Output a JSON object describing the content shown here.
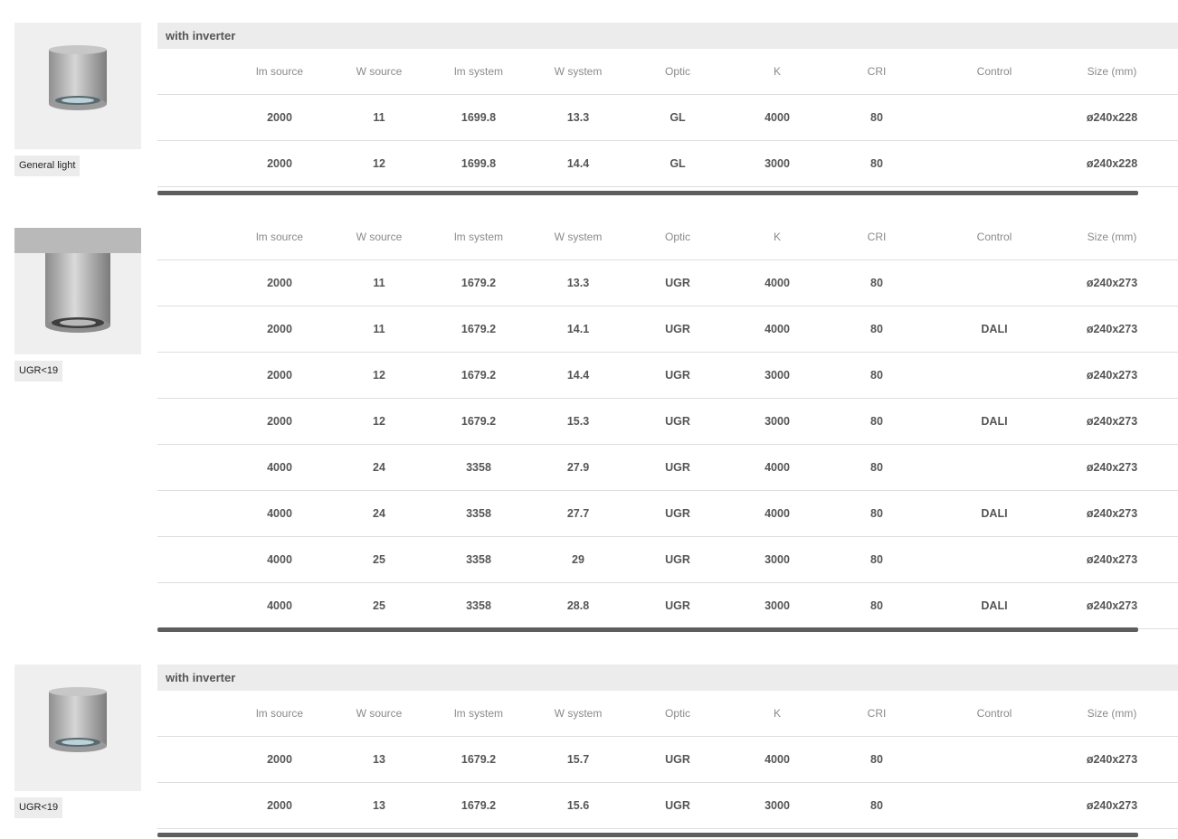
{
  "headers": [
    "lm source",
    "W source",
    "lm system",
    "W system",
    "Optic",
    "K",
    "CRI",
    "Control",
    "Size (mm)"
  ],
  "sections": [
    {
      "tag": "General light",
      "band": "with inverter",
      "rows": [
        [
          "2000",
          "11",
          "1699.8",
          "13.3",
          "GL",
          "4000",
          "80",
          "",
          "ø240x228"
        ],
        [
          "2000",
          "12",
          "1699.8",
          "14.4",
          "GL",
          "3000",
          "80",
          "",
          "ø240x228"
        ]
      ]
    },
    {
      "tag": "UGR<19",
      "band": "",
      "rows": [
        [
          "2000",
          "11",
          "1679.2",
          "13.3",
          "UGR",
          "4000",
          "80",
          "",
          "ø240x273"
        ],
        [
          "2000",
          "11",
          "1679.2",
          "14.1",
          "UGR",
          "4000",
          "80",
          "DALI",
          "ø240x273"
        ],
        [
          "2000",
          "12",
          "1679.2",
          "14.4",
          "UGR",
          "3000",
          "80",
          "",
          "ø240x273"
        ],
        [
          "2000",
          "12",
          "1679.2",
          "15.3",
          "UGR",
          "3000",
          "80",
          "DALI",
          "ø240x273"
        ],
        [
          "4000",
          "24",
          "3358",
          "27.9",
          "UGR",
          "4000",
          "80",
          "",
          "ø240x273"
        ],
        [
          "4000",
          "24",
          "3358",
          "27.7",
          "UGR",
          "4000",
          "80",
          "DALI",
          "ø240x273"
        ],
        [
          "4000",
          "25",
          "3358",
          "29",
          "UGR",
          "3000",
          "80",
          "",
          "ø240x273"
        ],
        [
          "4000",
          "25",
          "3358",
          "28.8",
          "UGR",
          "3000",
          "80",
          "DALI",
          "ø240x273"
        ]
      ]
    },
    {
      "tag": "UGR<19",
      "band": "with inverter",
      "rows": [
        [
          "2000",
          "13",
          "1679.2",
          "15.7",
          "UGR",
          "4000",
          "80",
          "",
          "ø240x273"
        ],
        [
          "2000",
          "13",
          "1679.2",
          "15.6",
          "UGR",
          "3000",
          "80",
          "",
          "ø240x273"
        ]
      ]
    }
  ]
}
